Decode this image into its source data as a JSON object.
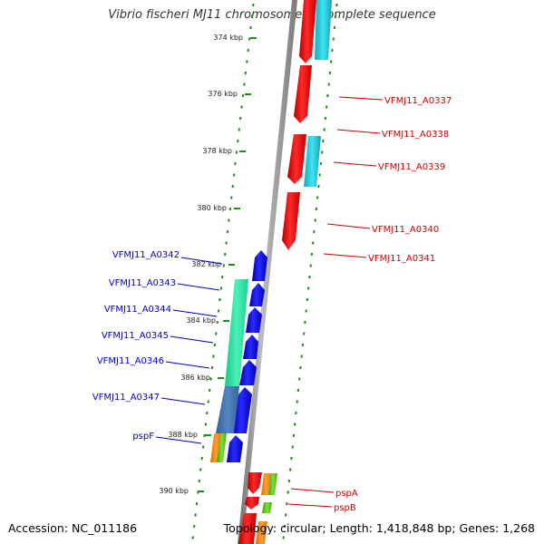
{
  "title": "Vibrio fischeri MJ11 chromosome II, complete sequence",
  "footer": {
    "accession": "Accession: NC_011186",
    "summary": "Topology: circular; Length: 1,418,848 bp; Genes: 1,268"
  },
  "colors": {
    "forward_label": "#cc0000",
    "reverse_label": "#0000cc",
    "backbone": "#9a9a9a",
    "gc_ticks": "#1e8c1e"
  },
  "ticks": [
    "374 kbp",
    "376 kbp",
    "378 kbp",
    "380 kbp",
    "382 kbp",
    "384 kbp",
    "386 kbp",
    "388 kbp",
    "390 kbp"
  ],
  "forward_labels": [
    "VFMJ11_A0337",
    "VFMJ11_A0338",
    "VFMJ11_A0339",
    "VFMJ11_A0340",
    "VFMJ11_A0341",
    "pspA",
    "pspB"
  ],
  "reverse_labels": [
    "VFMJ11_A0342",
    "VFMJ11_A0343",
    "VFMJ11_A0344",
    "VFMJ11_A0345",
    "VFMJ11_A0346",
    "VFMJ11_A0347",
    "pspF"
  ]
}
